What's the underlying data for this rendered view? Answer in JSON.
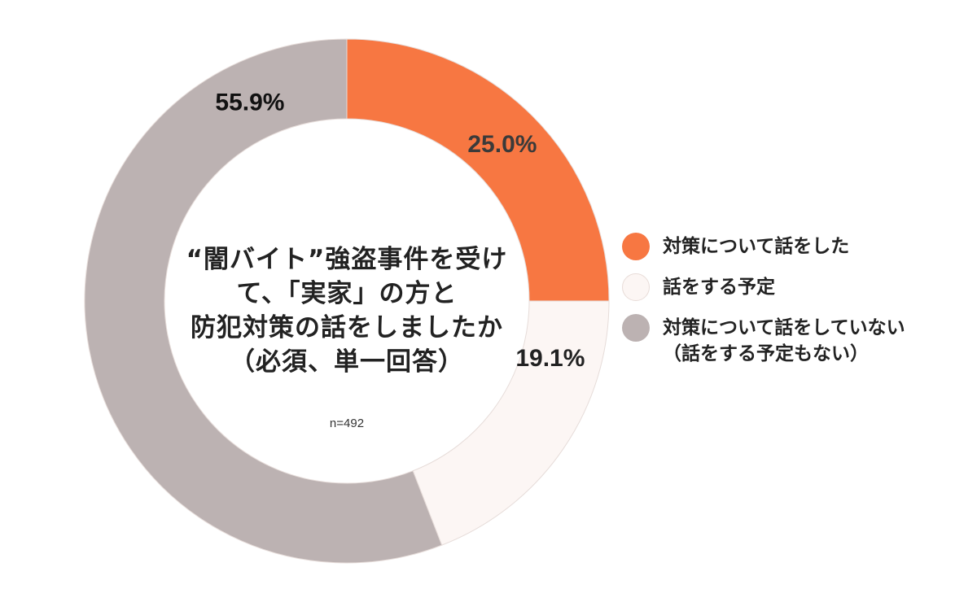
{
  "chart_data": {
    "type": "pie",
    "categories": [
      "対策について話をした",
      "話をする予定",
      "対策について話をしていない（話をする予定もない）"
    ],
    "values": [
      25.0,
      19.1,
      55.9
    ],
    "value_labels": [
      "25.0%",
      "19.1%",
      "55.9%"
    ],
    "colors": [
      "#f77742",
      "#fcf6f4",
      "#bcb2b2"
    ],
    "label_colors": [
      "#3a3a3a",
      "#222222",
      "#111111"
    ],
    "donut": true,
    "title_lines": [
      "“闇バイト”強盗事件を受け",
      "て、「実家」の方と",
      "防犯対策の話をしましたか",
      "（必須、単一回答）"
    ],
    "sample_size": "n=492",
    "legend_position": "right",
    "legend": [
      {
        "lines": [
          "対策について話をした"
        ],
        "color": "#f77742"
      },
      {
        "lines": [
          "話をする予定"
        ],
        "color": "#fcf6f4"
      },
      {
        "lines": [
          "対策について話をしていない",
          "（話をする予定もない）"
        ],
        "color": "#bcb2b2"
      }
    ]
  }
}
